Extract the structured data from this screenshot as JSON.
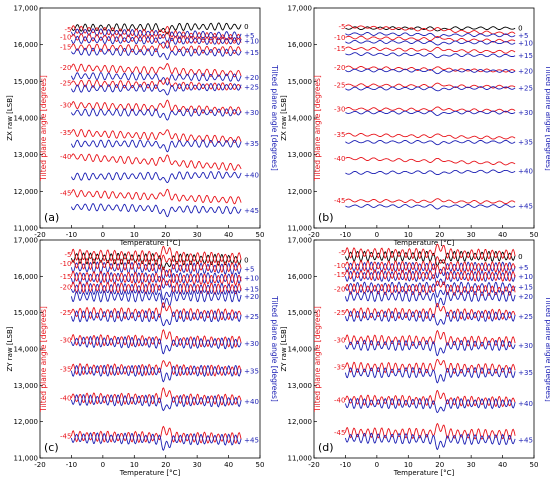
{
  "colors": {
    "negative": "#e8141b",
    "positive": "#1b1fb4",
    "zero": "#000000",
    "axis": "#000000"
  },
  "chart_data": [
    {
      "type": "line",
      "panel_label": "(a)",
      "xlabel": "Temperature [°C]",
      "ylabel": "ZX raw [LSB]",
      "left_side_label": "Tilted plane angle [degrees]",
      "right_side_label": "Tilted plane angle [degrees]",
      "xlim": [
        -20,
        50
      ],
      "ylim": [
        11000,
        17000
      ],
      "xticks": [
        "-20",
        "-10",
        "0",
        "10",
        "20",
        "30",
        "40",
        "50"
      ],
      "yticks": [
        "11,000",
        "12,000",
        "13,000",
        "14,000",
        "15,000",
        "16,000",
        "17,000"
      ],
      "x_range": [
        -10,
        44
      ],
      "ripple_amplitude": 100,
      "ripple_period_degC": 2.5,
      "series": [
        {
          "label": "0",
          "start": 16460,
          "end": 16500,
          "side": "right"
        },
        {
          "label": "-5",
          "start": 16420,
          "end": 16180,
          "side": "left"
        },
        {
          "label": "+5",
          "start": 16350,
          "end": 16250,
          "side": "right"
        },
        {
          "label": "-10",
          "start": 16210,
          "end": 16100,
          "side": "left"
        },
        {
          "label": "+10",
          "start": 16130,
          "end": 16100,
          "side": "right"
        },
        {
          "label": "-15",
          "start": 15930,
          "end": 15850,
          "side": "left"
        },
        {
          "label": "+15",
          "start": 15810,
          "end": 15780,
          "side": "right"
        },
        {
          "label": "-20",
          "start": 15380,
          "end": 15200,
          "side": "left"
        },
        {
          "label": "+20",
          "start": 15150,
          "end": 15100,
          "side": "right"
        },
        {
          "label": "-25",
          "start": 14950,
          "end": 14850,
          "side": "left"
        },
        {
          "label": "+25",
          "start": 14800,
          "end": 14850,
          "side": "right"
        },
        {
          "label": "-30",
          "start": 14350,
          "end": 14200,
          "side": "left"
        },
        {
          "label": "+30",
          "start": 14150,
          "end": 14150,
          "side": "right"
        },
        {
          "label": "-35",
          "start": 13600,
          "end": 13400,
          "side": "left"
        },
        {
          "label": "+35",
          "start": 13300,
          "end": 13300,
          "side": "right"
        },
        {
          "label": "-40",
          "start": 12950,
          "end": 12650,
          "side": "left"
        },
        {
          "label": "+40",
          "start": 12400,
          "end": 12450,
          "side": "right"
        },
        {
          "label": "-45",
          "start": 11950,
          "end": 11750,
          "side": "left"
        },
        {
          "label": "+45",
          "start": 11580,
          "end": 11480,
          "side": "right"
        }
      ]
    },
    {
      "type": "line",
      "panel_label": "(b)",
      "xlabel": "Temperature [°C]",
      "ylabel": "ZX raw [LSB]",
      "left_side_label": "Tilted plane angle [degrees]",
      "right_side_label": "Tilted plane angle [degrees]",
      "xlim": [
        -20,
        50
      ],
      "ylim": [
        11000,
        17000
      ],
      "xticks": [
        "-20",
        "-10",
        "0",
        "10",
        "20",
        "30",
        "40",
        "50"
      ],
      "yticks": [
        "11,000",
        "12,000",
        "13,000",
        "14,000",
        "15,000",
        "16,000",
        "17,000"
      ],
      "x_range": [
        -10,
        44
      ],
      "ripple_amplitude": 40,
      "ripple_period_degC": 4,
      "series": [
        {
          "label": "0",
          "start": 16450,
          "end": 16450,
          "side": "right"
        },
        {
          "label": "-5",
          "start": 16500,
          "end": 16300,
          "side": "left"
        },
        {
          "label": "+5",
          "start": 16300,
          "end": 16250,
          "side": "right"
        },
        {
          "label": "-10",
          "start": 16200,
          "end": 16100,
          "side": "left"
        },
        {
          "label": "+10",
          "start": 16080,
          "end": 16050,
          "side": "right"
        },
        {
          "label": "-15",
          "start": 15900,
          "end": 15800,
          "side": "left"
        },
        {
          "label": "+15",
          "start": 15750,
          "end": 15700,
          "side": "right"
        },
        {
          "label": "-20",
          "start": 15380,
          "end": 15280,
          "side": "left"
        },
        {
          "label": "+20",
          "start": 15300,
          "end": 15280,
          "side": "right"
        },
        {
          "label": "-25",
          "start": 14900,
          "end": 14850,
          "side": "left"
        },
        {
          "label": "+25",
          "start": 14800,
          "end": 14820,
          "side": "right"
        },
        {
          "label": "-30",
          "start": 14250,
          "end": 14200,
          "side": "left"
        },
        {
          "label": "+30",
          "start": 14150,
          "end": 14150,
          "side": "right"
        },
        {
          "label": "-35",
          "start": 13550,
          "end": 13450,
          "side": "left"
        },
        {
          "label": "+35",
          "start": 13350,
          "end": 13350,
          "side": "right"
        },
        {
          "label": "-40",
          "start": 12900,
          "end": 12750,
          "side": "left"
        },
        {
          "label": "+40",
          "start": 12500,
          "end": 12550,
          "side": "right"
        },
        {
          "label": "-45",
          "start": 11750,
          "end": 11700,
          "side": "left"
        },
        {
          "label": "+45",
          "start": 11600,
          "end": 11600,
          "side": "right"
        }
      ]
    },
    {
      "type": "line",
      "panel_label": "(c)",
      "xlabel": "Temperature [°C]",
      "ylabel": "ZY raw [LSB]",
      "left_side_label": "Tilted plane angle [degrees]",
      "right_side_label": "Tilted plane angle [degrees]",
      "xlim": [
        -20,
        50
      ],
      "ylim": [
        11000,
        17000
      ],
      "xticks": [
        "-20",
        "-10",
        "0",
        "10",
        "20",
        "30",
        "40",
        "50"
      ],
      "yticks": [
        "11,000",
        "12,000",
        "13,000",
        "14,000",
        "15,000",
        "16,000",
        "17,000"
      ],
      "x_range": [
        -10,
        44
      ],
      "ripple_amplitude": 150,
      "ripple_period_degC": 2.2,
      "series": [
        {
          "label": "0",
          "start": 16500,
          "end": 16450,
          "side": "right"
        },
        {
          "label": "-5",
          "start": 16600,
          "end": 16500,
          "side": "left"
        },
        {
          "label": "+5",
          "start": 16250,
          "end": 16200,
          "side": "right"
        },
        {
          "label": "-10",
          "start": 16350,
          "end": 16250,
          "side": "left"
        },
        {
          "label": "+10",
          "start": 15950,
          "end": 15950,
          "side": "right"
        },
        {
          "label": "-15",
          "start": 16000,
          "end": 15900,
          "side": "left"
        },
        {
          "label": "+15",
          "start": 15650,
          "end": 15650,
          "side": "right"
        },
        {
          "label": "-20",
          "start": 15700,
          "end": 15650,
          "side": "left"
        },
        {
          "label": "+20",
          "start": 15450,
          "end": 15450,
          "side": "right"
        },
        {
          "label": "-25",
          "start": 15000,
          "end": 14950,
          "side": "left"
        },
        {
          "label": "+25",
          "start": 14900,
          "end": 14900,
          "side": "right"
        },
        {
          "label": "-30",
          "start": 14250,
          "end": 14200,
          "side": "left"
        },
        {
          "label": "+30",
          "start": 14200,
          "end": 14150,
          "side": "right"
        },
        {
          "label": "-35",
          "start": 13450,
          "end": 13400,
          "side": "left"
        },
        {
          "label": "+35",
          "start": 13400,
          "end": 13400,
          "side": "right"
        },
        {
          "label": "-40",
          "start": 12650,
          "end": 12600,
          "side": "left"
        },
        {
          "label": "+40",
          "start": 12600,
          "end": 12550,
          "side": "right"
        },
        {
          "label": "-45",
          "start": 11600,
          "end": 11550,
          "side": "left"
        },
        {
          "label": "+45",
          "start": 11550,
          "end": 11500,
          "side": "right"
        }
      ]
    },
    {
      "type": "line",
      "panel_label": "(d)",
      "xlabel": "Temperature [°C]",
      "ylabel": "ZY raw [LSB]",
      "left_side_label": "Tilted plane angle [degrees]",
      "right_side_label": "Tilted plane angle [degrees]",
      "xlim": [
        -20,
        50
      ],
      "ylim": [
        11000,
        17000
      ],
      "xticks": [
        "-20",
        "-10",
        "0",
        "10",
        "20",
        "30",
        "40",
        "50"
      ],
      "yticks": [
        "11,000",
        "12,000",
        "13,000",
        "14,000",
        "15,000",
        "16,000",
        "17,000"
      ],
      "x_range": [
        -10,
        44
      ],
      "ripple_amplitude": 140,
      "ripple_period_degC": 2.2,
      "series": [
        {
          "label": "0",
          "start": 16550,
          "end": 16550,
          "side": "right"
        },
        {
          "label": "-5",
          "start": 16650,
          "end": 16600,
          "side": "left"
        },
        {
          "label": "+5",
          "start": 16250,
          "end": 16250,
          "side": "right"
        },
        {
          "label": "-10",
          "start": 16300,
          "end": 16250,
          "side": "left"
        },
        {
          "label": "+10",
          "start": 16000,
          "end": 16000,
          "side": "right"
        },
        {
          "label": "-15",
          "start": 16050,
          "end": 16000,
          "side": "left"
        },
        {
          "label": "+15",
          "start": 15700,
          "end": 15700,
          "side": "right"
        },
        {
          "label": "-20",
          "start": 15650,
          "end": 15600,
          "side": "left"
        },
        {
          "label": "+20",
          "start": 15450,
          "end": 15450,
          "side": "right"
        },
        {
          "label": "-25",
          "start": 15000,
          "end": 14950,
          "side": "left"
        },
        {
          "label": "+25",
          "start": 14900,
          "end": 14900,
          "side": "right"
        },
        {
          "label": "-30",
          "start": 14250,
          "end": 14200,
          "side": "left"
        },
        {
          "label": "+30",
          "start": 14100,
          "end": 14100,
          "side": "right"
        },
        {
          "label": "-35",
          "start": 13500,
          "end": 13450,
          "side": "left"
        },
        {
          "label": "+35",
          "start": 13350,
          "end": 13350,
          "side": "right"
        },
        {
          "label": "-40",
          "start": 12600,
          "end": 12550,
          "side": "left"
        },
        {
          "label": "+40",
          "start": 12500,
          "end": 12500,
          "side": "right"
        },
        {
          "label": "-45",
          "start": 11700,
          "end": 11650,
          "side": "left"
        },
        {
          "label": "+45",
          "start": 11550,
          "end": 11500,
          "side": "right"
        }
      ]
    }
  ]
}
